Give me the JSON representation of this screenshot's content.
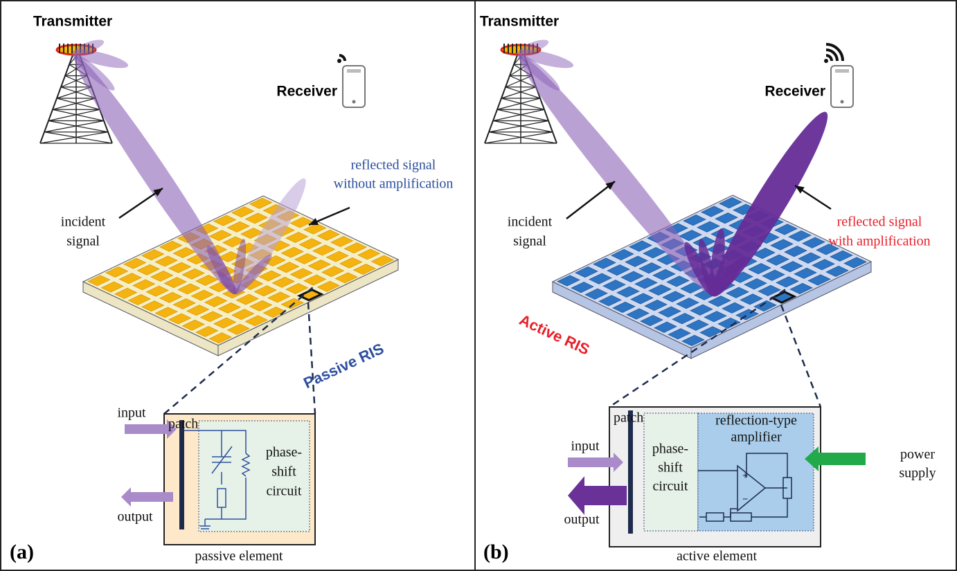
{
  "panels": [
    {
      "label": "(a)",
      "transmitter": "Transmitter",
      "receiver": "Receiver",
      "incident_signal": [
        "incident",
        "signal"
      ],
      "reflected_signal": [
        "reflected signal",
        "without amplification"
      ],
      "ris_label": "Passive RIS",
      "element": {
        "patch": "patch",
        "input": "input",
        "output": "output",
        "circuit": [
          "phase-",
          "shift",
          "circuit"
        ],
        "caption": "passive element"
      }
    },
    {
      "label": "(b)",
      "transmitter": "Transmitter",
      "receiver": "Receiver",
      "incident_signal": [
        "incident",
        "signal"
      ],
      "reflected_signal": [
        "reflected signal",
        "with amplification"
      ],
      "ris_label": "Active RIS",
      "element": {
        "patch": "patch",
        "input": "input",
        "output": "output",
        "circuit": [
          "phase-",
          "shift",
          "circuit"
        ],
        "amplifier": [
          "reflection-type",
          "amplifier"
        ],
        "power": [
          "power",
          "supply"
        ],
        "caption": "active element"
      }
    }
  ]
}
